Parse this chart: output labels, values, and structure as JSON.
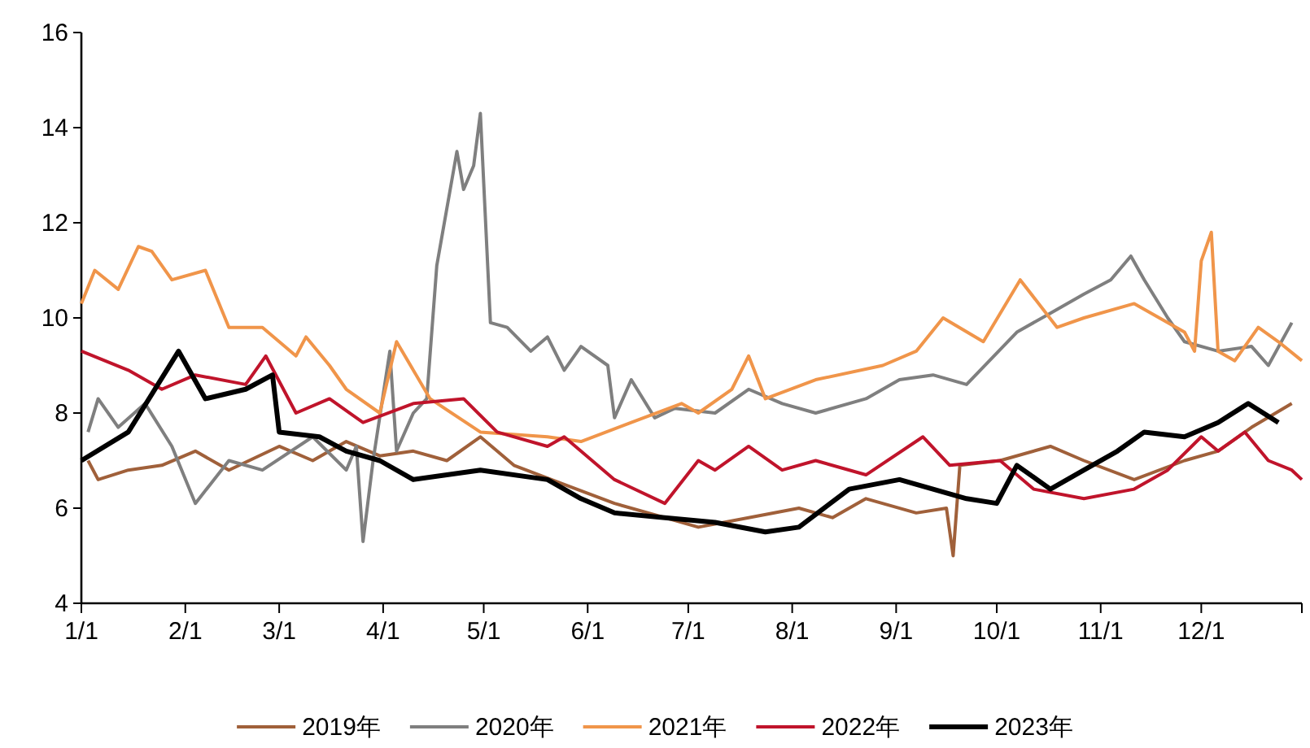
{
  "chart_data": {
    "type": "line",
    "xlim": [
      "--01-01",
      "--12-31"
    ],
    "ylim": [
      4,
      16
    ],
    "yticks": [
      4,
      6,
      8,
      10,
      12,
      14,
      16
    ],
    "xticks": [
      {
        "value": "--01-01",
        "label": "1/1"
      },
      {
        "value": "--02-01",
        "label": "2/1"
      },
      {
        "value": "--03-01",
        "label": "3/1"
      },
      {
        "value": "--04-01",
        "label": "4/1"
      },
      {
        "value": "--05-01",
        "label": "5/1"
      },
      {
        "value": "--06-01",
        "label": "6/1"
      },
      {
        "value": "--07-01",
        "label": "7/1"
      },
      {
        "value": "--08-01",
        "label": "8/1"
      },
      {
        "value": "--09-01",
        "label": "9/1"
      },
      {
        "value": "--10-01",
        "label": "10/1"
      },
      {
        "value": "--11-01",
        "label": "11/1"
      },
      {
        "value": "--12-01",
        "label": "12/1"
      },
      {
        "value": "--12-31",
        "label": null
      }
    ],
    "grid": false,
    "legend": "bottom",
    "marker": "none",
    "line_style": "solid",
    "series": [
      {
        "name": "2019年",
        "color": "#a0603a",
        "x": [
          "--01-03",
          "--01-06",
          "--01-15",
          "--01-25",
          "--02-04",
          "--02-14",
          "--03-01",
          "--03-11",
          "--03-21",
          "--03-31",
          "--04-10",
          "--04-20",
          "--04-30",
          "--05-10",
          "--05-25",
          "--06-09",
          "--06-24",
          "--07-04",
          "--07-19",
          "--08-03",
          "--08-13",
          "--08-23",
          "--09-07",
          "--09-16",
          "--09-18",
          "--09-20",
          "--10-02",
          "--10-17",
          "--10-27",
          "--11-11",
          "--11-26",
          "--12-06",
          "--12-16",
          "--12-28"
        ],
        "values": [
          7.0,
          6.6,
          6.8,
          6.9,
          7.2,
          6.8,
          7.3,
          7.0,
          7.4,
          7.1,
          7.2,
          7.0,
          7.5,
          6.9,
          6.5,
          6.1,
          5.8,
          5.6,
          5.8,
          6.0,
          5.8,
          6.2,
          5.9,
          6.0,
          5.0,
          6.9,
          7.0,
          7.3,
          7.0,
          6.6,
          7.0,
          7.2,
          7.7,
          8.2
        ]
      },
      {
        "name": "2020年",
        "color": "#7f7f7f",
        "x": [
          "--01-03",
          "--01-06",
          "--01-12",
          "--01-20",
          "--01-28",
          "--02-04",
          "--02-14",
          "--02-24",
          "--03-11",
          "--03-21",
          "--03-24",
          "--03-26",
          "--03-29",
          "--04-03",
          "--04-05",
          "--04-10",
          "--04-14",
          "--04-17",
          "--04-23",
          "--04-25",
          "--04-28",
          "--04-30",
          "--05-03",
          "--05-08",
          "--05-15",
          "--05-20",
          "--05-25",
          "--05-30",
          "--06-07",
          "--06-09",
          "--06-14",
          "--06-21",
          "--06-27",
          "--07-09",
          "--07-19",
          "--07-29",
          "--08-08",
          "--08-23",
          "--09-02",
          "--09-12",
          "--09-22",
          "--10-07",
          "--10-17",
          "--10-27",
          "--11-04",
          "--11-10",
          "--11-14",
          "--11-21",
          "--11-26",
          "--12-06",
          "--12-16",
          "--12-21",
          "--12-28"
        ],
        "values": [
          7.6,
          8.3,
          7.7,
          8.2,
          7.3,
          6.1,
          7.0,
          6.8,
          7.5,
          6.8,
          7.3,
          5.3,
          7.0,
          9.3,
          7.2,
          8.0,
          8.3,
          11.1,
          13.5,
          12.7,
          13.2,
          14.3,
          9.9,
          9.8,
          9.3,
          9.6,
          8.9,
          9.4,
          9.0,
          7.9,
          8.7,
          7.9,
          8.1,
          8.0,
          8.5,
          8.2,
          8.0,
          8.3,
          8.7,
          8.8,
          8.6,
          9.7,
          10.1,
          10.5,
          10.8,
          11.3,
          10.8,
          10.0,
          9.5,
          9.3,
          9.4,
          9.0,
          9.9
        ]
      },
      {
        "name": "2021年",
        "color": "#f0954a",
        "x": [
          "--01-01",
          "--01-05",
          "--01-12",
          "--01-18",
          "--01-22",
          "--01-28",
          "--02-07",
          "--02-14",
          "--02-24",
          "--03-06",
          "--03-09",
          "--03-16",
          "--03-21",
          "--03-31",
          "--04-05",
          "--04-15",
          "--04-30",
          "--05-20",
          "--05-30",
          "--06-14",
          "--06-29",
          "--07-04",
          "--07-14",
          "--07-19",
          "--07-24",
          "--08-08",
          "--08-28",
          "--09-07",
          "--09-15",
          "--09-27",
          "--10-08",
          "--10-19",
          "--10-27",
          "--11-11",
          "--11-26",
          "--11-29",
          "--12-01",
          "--12-04",
          "--12-06",
          "--12-11",
          "--12-18",
          "--12-24",
          "--12-31"
        ],
        "values": [
          10.3,
          11.0,
          10.6,
          11.5,
          11.4,
          10.8,
          11.0,
          9.8,
          9.8,
          9.2,
          9.6,
          9.0,
          8.5,
          8.0,
          9.5,
          8.3,
          7.6,
          7.5,
          7.4,
          7.8,
          8.2,
          8.0,
          8.5,
          9.2,
          8.3,
          8.7,
          9.0,
          9.3,
          10.0,
          9.5,
          10.8,
          9.8,
          10.0,
          10.3,
          9.7,
          9.3,
          11.2,
          11.8,
          9.3,
          9.1,
          9.8,
          9.5,
          9.1
        ]
      },
      {
        "name": "2022年",
        "color": "#c0142b",
        "x": [
          "--01-01",
          "--01-15",
          "--01-25",
          "--02-04",
          "--02-19",
          "--02-25",
          "--03-06",
          "--03-16",
          "--03-26",
          "--04-10",
          "--04-25",
          "--05-05",
          "--05-20",
          "--05-25",
          "--06-09",
          "--06-24",
          "--07-04",
          "--07-09",
          "--07-19",
          "--07-29",
          "--08-08",
          "--08-23",
          "--09-09",
          "--09-17",
          "--10-02",
          "--10-12",
          "--10-27",
          "--11-11",
          "--11-21",
          "--12-01",
          "--12-06",
          "--12-14",
          "--12-21",
          "--12-28",
          "--12-31"
        ],
        "values": [
          9.3,
          8.9,
          8.5,
          8.8,
          8.6,
          9.2,
          8.0,
          8.3,
          7.8,
          8.2,
          8.3,
          7.6,
          7.3,
          7.5,
          6.6,
          6.1,
          7.0,
          6.8,
          7.3,
          6.8,
          7.0,
          6.7,
          7.5,
          6.9,
          7.0,
          6.4,
          6.2,
          6.4,
          6.8,
          7.5,
          7.2,
          7.6,
          7.0,
          6.8,
          6.6
        ]
      },
      {
        "name": "2023年",
        "color": "#000000",
        "x": [
          "--01-01",
          "--01-15",
          "--01-30",
          "--02-07",
          "--02-19",
          "--02-27",
          "--03-01",
          "--03-13",
          "--03-21",
          "--03-31",
          "--04-10",
          "--04-30",
          "--05-20",
          "--05-30",
          "--06-09",
          "--06-24",
          "--07-09",
          "--07-24",
          "--08-03",
          "--08-18",
          "--09-02",
          "--09-22",
          "--10-01",
          "--10-07",
          "--10-17",
          "--10-27",
          "--11-06",
          "--11-14",
          "--11-26",
          "--12-06",
          "--12-15",
          "--12-24"
        ],
        "values": [
          7.0,
          7.6,
          9.3,
          8.3,
          8.5,
          8.8,
          7.6,
          7.5,
          7.2,
          7.0,
          6.6,
          6.8,
          6.6,
          6.2,
          5.9,
          5.8,
          5.7,
          5.5,
          5.6,
          6.4,
          6.6,
          6.2,
          6.1,
          6.9,
          6.4,
          6.8,
          7.2,
          7.6,
          7.5,
          7.8,
          8.2,
          7.8
        ]
      }
    ]
  }
}
